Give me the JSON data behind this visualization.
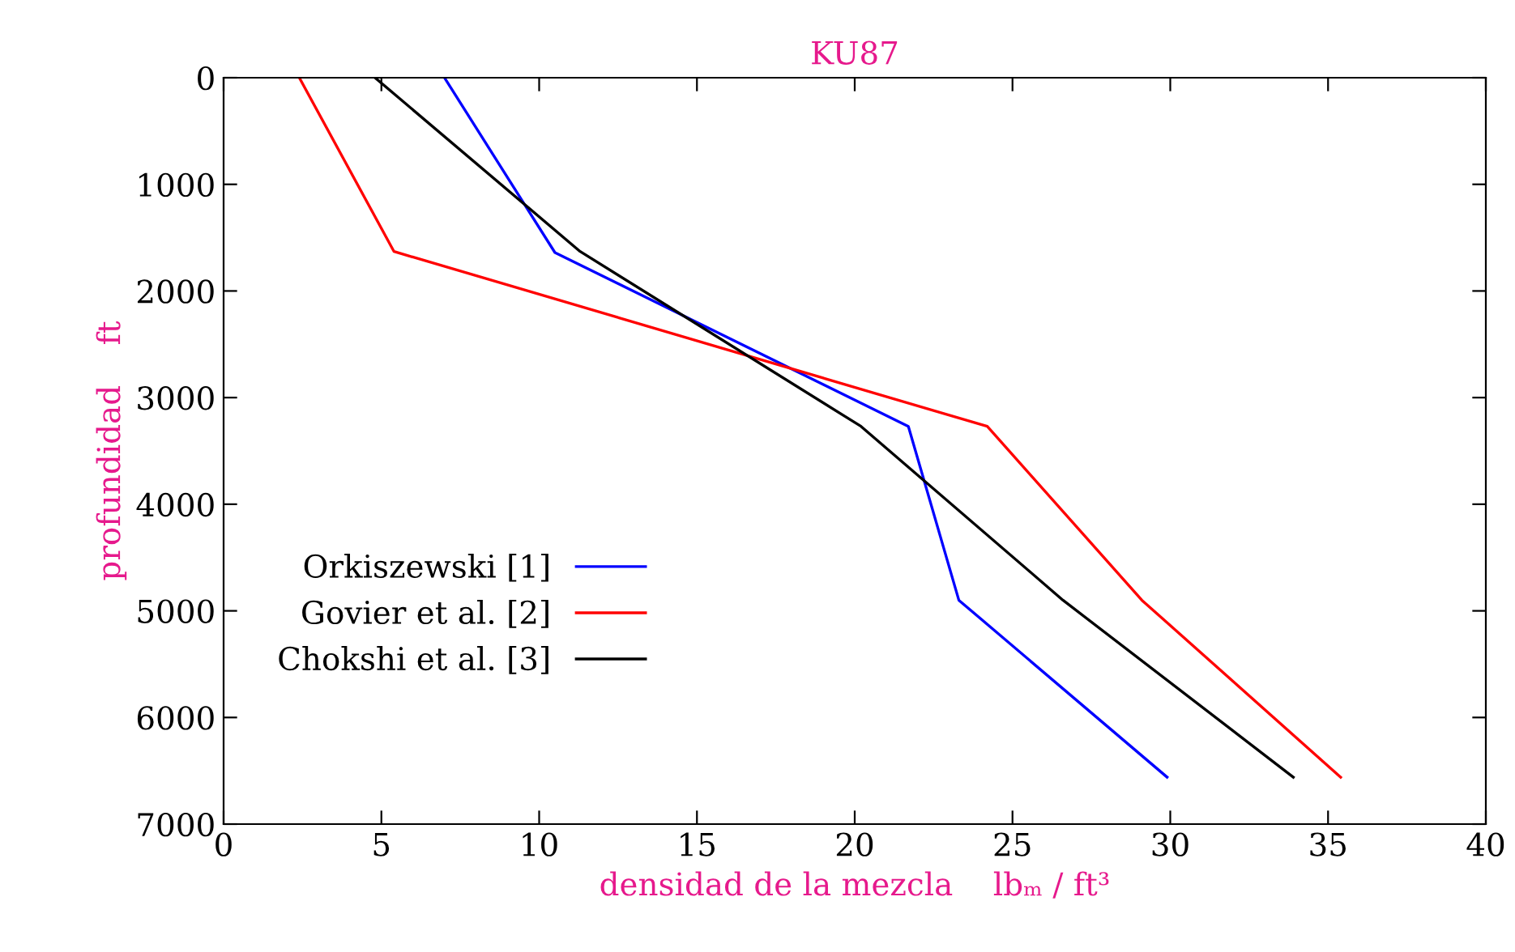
{
  "chart_data": {
    "type": "line",
    "title": "KU87",
    "xlabel": "densidad de la mezcla    lbₘ / ft³",
    "ylabel": "profundidad    ft",
    "xlim": [
      0,
      40
    ],
    "xticks": [
      0,
      5,
      10,
      15,
      20,
      25,
      30,
      35,
      40
    ],
    "ylim": [
      7000,
      0
    ],
    "yticks": [
      0,
      1000,
      2000,
      3000,
      4000,
      5000,
      6000,
      7000
    ],
    "grid": false,
    "legend": "left",
    "series": [
      {
        "name": "Orkiszewski [1]",
        "color": "#0000ff",
        "x": [
          7.0,
          10.5,
          21.7,
          23.3,
          29.9
        ],
        "values": [
          0,
          1640,
          3270,
          4900,
          6560
        ]
      },
      {
        "name": "Govier et al. [2]",
        "color": "#ff0000",
        "x": [
          2.4,
          5.4,
          24.2,
          29.1,
          35.4
        ],
        "values": [
          0,
          1630,
          3270,
          4900,
          6560
        ]
      },
      {
        "name": "Chokshi et al. [3]",
        "color": "#000000",
        "x": [
          4.8,
          11.3,
          20.2,
          26.6,
          33.9
        ],
        "values": [
          0,
          1630,
          3270,
          4900,
          6560
        ]
      }
    ]
  }
}
